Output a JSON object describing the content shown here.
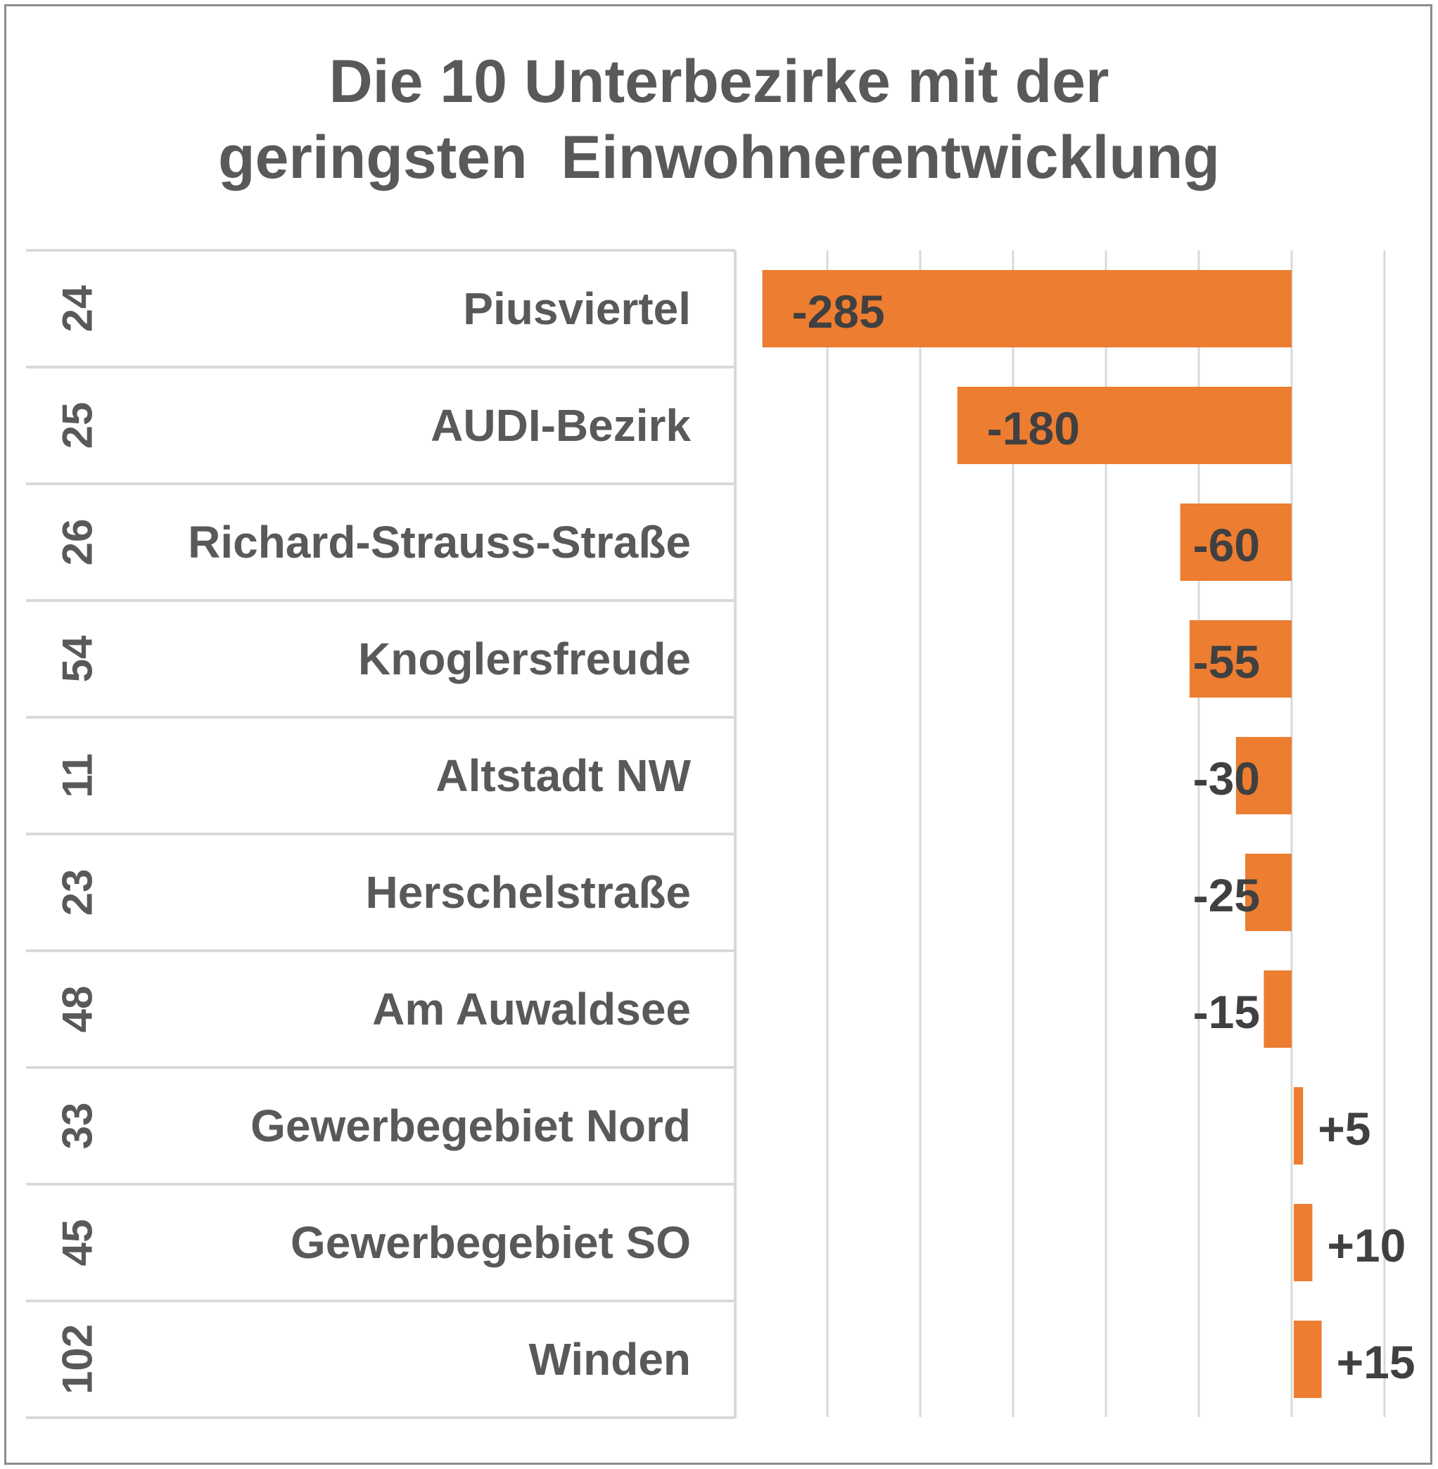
{
  "chart_data": {
    "type": "bar",
    "orientation": "horizontal",
    "title_lines": [
      "Die 10 Unterbezirke mit der",
      "geringsten  Einwohnerentwicklung"
    ],
    "xlabel": "",
    "ylabel": "",
    "categories": [
      {
        "code": "24",
        "name": "Piusviertel"
      },
      {
        "code": "25",
        "name": "AUDI-Bezirk"
      },
      {
        "code": "26",
        "name": "Richard-Strauss-Straße"
      },
      {
        "code": "54",
        "name": "Knoglersfreude"
      },
      {
        "code": "11",
        "name": "Altstadt NW"
      },
      {
        "code": "23",
        "name": "Herschelstraße"
      },
      {
        "code": "48",
        "name": "Am Auwaldsee"
      },
      {
        "code": "33",
        "name": "Gewerbegebiet Nord"
      },
      {
        "code": "45",
        "name": "Gewerbegebiet SO"
      },
      {
        "code": "102",
        "name": "Winden"
      }
    ],
    "values": [
      -285,
      -180,
      -60,
      -55,
      -30,
      -25,
      -15,
      5,
      10,
      15
    ],
    "labels": [
      "-285",
      "-180",
      "-60",
      "-55",
      "-30",
      "-25",
      "-15",
      "+5",
      "+10",
      "+15"
    ],
    "xlim": [
      -300,
      50
    ],
    "x_gridlines": [
      -250,
      -200,
      -150,
      -100,
      -50,
      0,
      50
    ],
    "grid": true,
    "legend": "none",
    "bar_color": "#ED7D31"
  }
}
